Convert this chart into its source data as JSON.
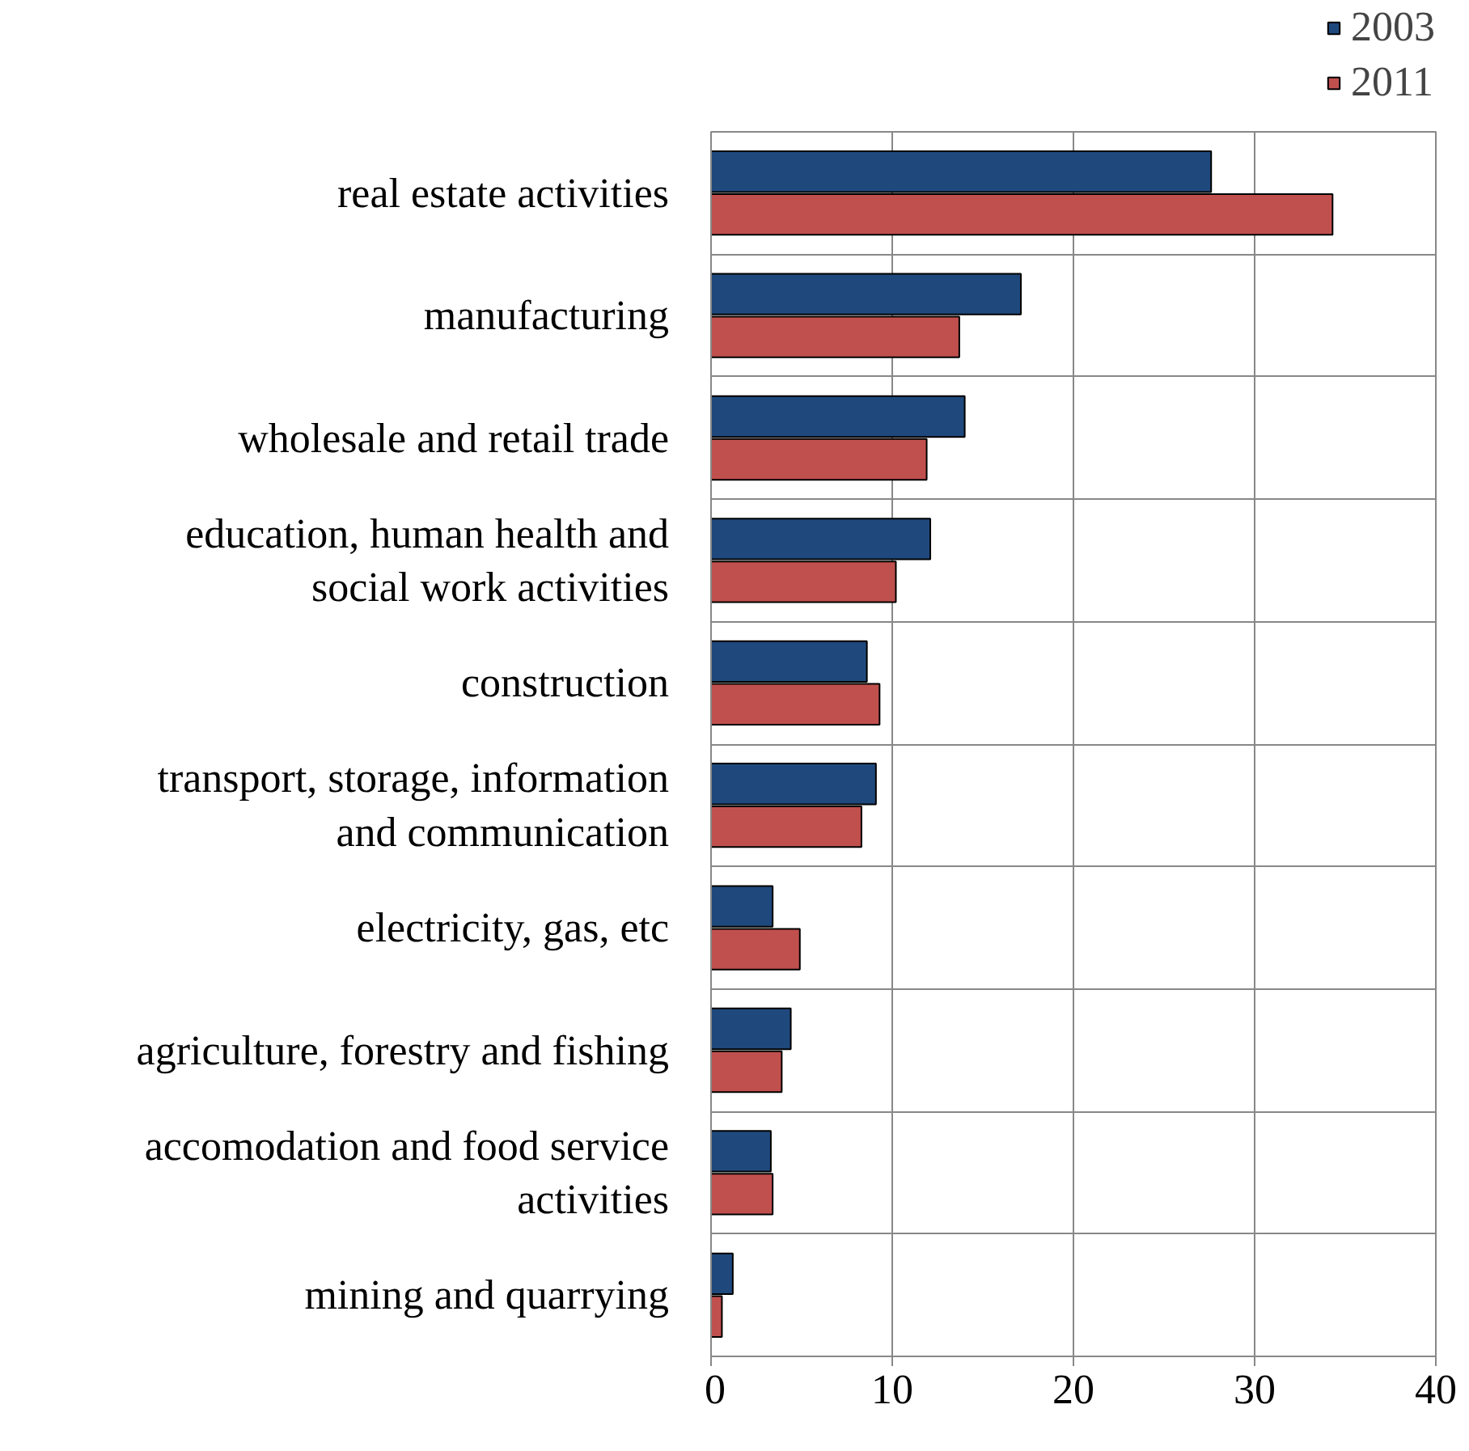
{
  "chart_data": {
    "type": "bar",
    "orientation": "horizontal",
    "categories": [
      "real estate activities",
      "manufacturing",
      "wholesale and retail trade",
      "education, human health and\nsocial work activities",
      "construction",
      "transport, storage, information\nand communication",
      "electricity, gas, etc",
      "agriculture, forestry and fishing",
      "accomodation and food service\nactivities",
      "mining and quarrying"
    ],
    "series": [
      {
        "name": "2003",
        "color": "#1f497d",
        "values": [
          27.6,
          17.1,
          14.0,
          12.1,
          8.6,
          9.1,
          3.4,
          4.4,
          3.3,
          1.2
        ]
      },
      {
        "name": "2011",
        "color": "#c0504d",
        "values": [
          34.3,
          13.7,
          11.9,
          10.2,
          9.3,
          8.3,
          4.9,
          3.9,
          3.4,
          0.6
        ]
      }
    ],
    "xlim": [
      0,
      40
    ],
    "xticks": [
      0,
      10,
      20,
      30,
      40
    ],
    "grid": true,
    "legend": "top right"
  }
}
